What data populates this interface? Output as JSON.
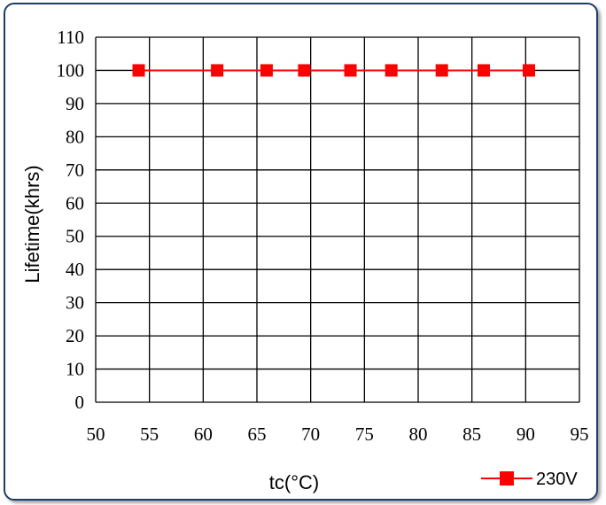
{
  "chart_data": {
    "type": "line",
    "xlabel": "tc(°C)",
    "ylabel": "Lifetime(khrs)",
    "xlim": [
      50,
      95
    ],
    "ylim": [
      0,
      110
    ],
    "x_ticks": [
      50,
      55,
      60,
      65,
      70,
      75,
      80,
      85,
      90,
      95
    ],
    "y_ticks": [
      0,
      10,
      20,
      30,
      40,
      50,
      60,
      70,
      80,
      90,
      100,
      110
    ],
    "grid": true,
    "legend_position": "bottom-right",
    "series": [
      {
        "name": "230V",
        "color": "#ff0000",
        "marker": "square",
        "x": [
          54,
          61.3,
          65.9,
          69.4,
          73.7,
          77.5,
          82.2,
          86.1,
          90.3
        ],
        "y": [
          100,
          100,
          100,
          100,
          100,
          100,
          100,
          100,
          100
        ]
      }
    ]
  }
}
